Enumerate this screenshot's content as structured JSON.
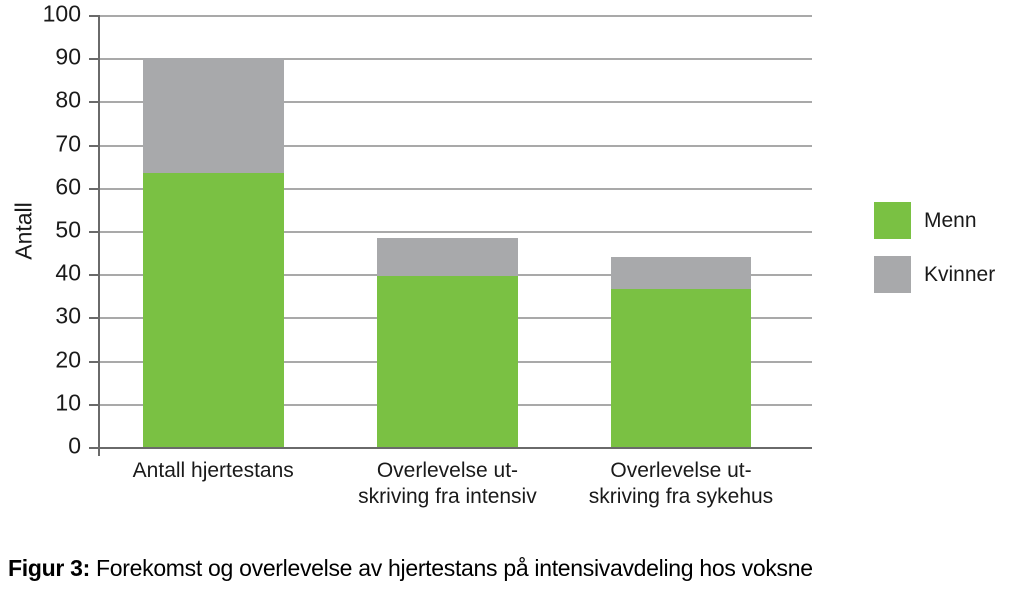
{
  "chart_data": {
    "type": "bar",
    "stacked": true,
    "title": "",
    "xlabel": "",
    "ylabel": "Antall",
    "ylim": [
      0,
      100
    ],
    "yticks": [
      0,
      10,
      20,
      30,
      40,
      50,
      60,
      70,
      80,
      90,
      100
    ],
    "grid": true,
    "legend_position": "right",
    "categories": [
      "Antall hjertestans",
      "Overlevelse ut-\nskriving fra intensiv",
      "Overlevelse ut-\nskriving fra sykehus"
    ],
    "series": [
      {
        "name": "Menn",
        "color": "#7AC143",
        "values": [
          63.5,
          39.5,
          36.5
        ]
      },
      {
        "name": "Kvinner",
        "color": "#A8A9AB",
        "values": [
          26.5,
          9.0,
          7.5
        ]
      }
    ],
    "stack_totals": [
      90,
      48.5,
      44
    ],
    "bar_centers_pct": [
      15.9,
      48.8,
      81.6
    ]
  },
  "caption": {
    "label": "Figur 3:",
    "text": " Forekomst og overlevelse av hjertestans på intensivavdeling hos voksne"
  },
  "colors": {
    "background": "#FFFFFF",
    "bar_menn": "#7AC143",
    "bar_kvinner": "#A8A9AB",
    "gridline": "#A9A9A9",
    "axis": "#6A6A6A",
    "text": "#1A1A1A"
  }
}
